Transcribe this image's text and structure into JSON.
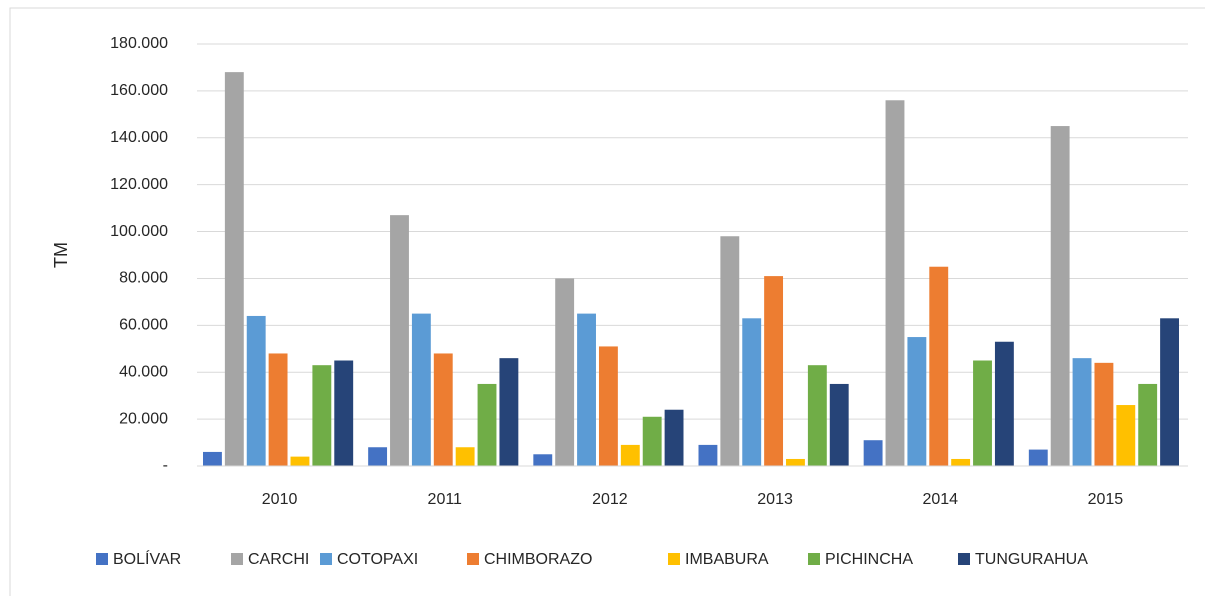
{
  "chart_data": {
    "type": "bar",
    "y_label": "TM",
    "categories": [
      "2010",
      "2011",
      "2012",
      "2013",
      "2014",
      "2015"
    ],
    "series": [
      {
        "name": "BOLÍVAR",
        "color": "#4472c4",
        "values": [
          6000,
          8000,
          5000,
          9000,
          11000,
          7000
        ]
      },
      {
        "name": "CARCHI",
        "color": "#a5a5a5",
        "values": [
          168000,
          107000,
          80000,
          98000,
          156000,
          145000
        ]
      },
      {
        "name": "COTOPAXI",
        "color": "#5b9bd5",
        "values": [
          64000,
          65000,
          65000,
          63000,
          55000,
          46000
        ]
      },
      {
        "name": "CHIMBORAZO",
        "color": "#ed7d31",
        "values": [
          48000,
          48000,
          51000,
          81000,
          85000,
          44000
        ]
      },
      {
        "name": "IMBABURA",
        "color": "#ffc000",
        "values": [
          4000,
          8000,
          9000,
          3000,
          3000,
          26000
        ]
      },
      {
        "name": "PICHINCHA",
        "color": "#70ad47",
        "values": [
          43000,
          35000,
          21000,
          43000,
          45000,
          35000
        ]
      },
      {
        "name": "TUNGURAHUA",
        "color": "#264478",
        "values": [
          45000,
          46000,
          24000,
          35000,
          53000,
          63000
        ]
      }
    ],
    "ylim": [
      0,
      180000
    ],
    "yticks": [
      {
        "value": 0,
        "label": "-"
      },
      {
        "value": 20000,
        "label": "20.000"
      },
      {
        "value": 40000,
        "label": "40.000"
      },
      {
        "value": 60000,
        "label": "60.000"
      },
      {
        "value": 80000,
        "label": "80.000"
      },
      {
        "value": 100000,
        "label": "100.000"
      },
      {
        "value": 120000,
        "label": "120.000"
      },
      {
        "value": 140000,
        "label": "140.000"
      },
      {
        "value": 160000,
        "label": "160.000"
      },
      {
        "value": 180000,
        "label": "180.000"
      }
    ],
    "grid": true,
    "legend": "bottom"
  }
}
